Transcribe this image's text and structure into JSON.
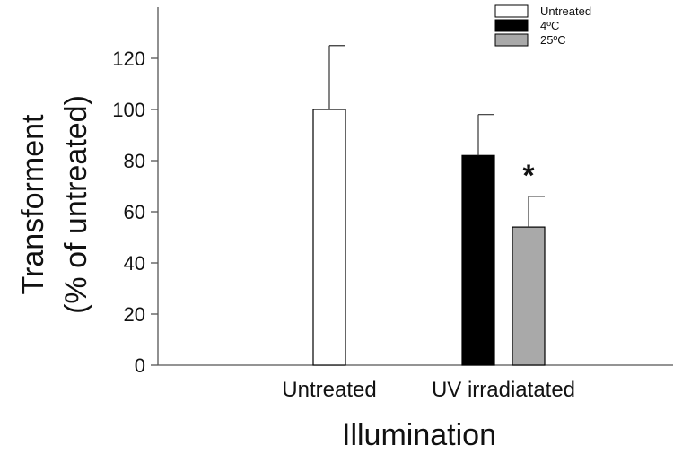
{
  "chart_data": {
    "type": "bar",
    "title": "",
    "xlabel": "Illumination",
    "ylabel_line1": "Transforment",
    "ylabel_line2": "(% of untreated)",
    "ylim": [
      0,
      140
    ],
    "yticks": [
      0,
      20,
      40,
      60,
      80,
      100,
      120
    ],
    "categories": [
      "Untreated",
      "UV irradiatated"
    ],
    "legend_position": "top-right",
    "series": [
      {
        "name": "Untreated",
        "color": "#ffffff",
        "values": [
          100,
          null
        ],
        "errors": [
          25,
          null
        ]
      },
      {
        "name": "4ºC",
        "color": "#000000",
        "values": [
          null,
          82
        ],
        "errors": [
          null,
          16
        ]
      },
      {
        "name": "25ºC",
        "color": "#a9a9a9",
        "values": [
          null,
          54
        ],
        "errors": [
          null,
          12
        ]
      }
    ],
    "annotations": [
      {
        "text": "*",
        "category": "UV irradiatated",
        "series": "25ºC"
      }
    ]
  }
}
